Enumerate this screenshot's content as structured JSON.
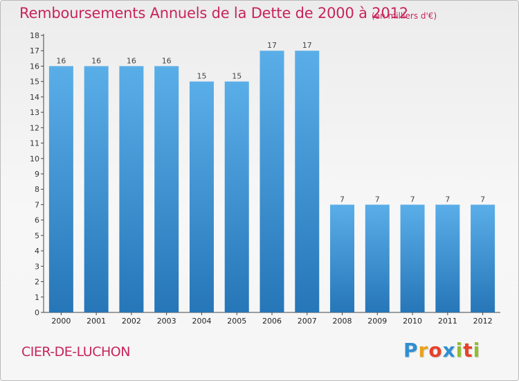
{
  "header": {
    "title": "Remboursements Annuels de la Dette de 2000 à 2012",
    "unit": "(en milliers d'€)"
  },
  "footer": {
    "commune": "CIER-DE-LUCHON",
    "logo_letters": [
      "P",
      "r",
      "o",
      "x",
      "i",
      "t",
      "i"
    ],
    "logo_colors": [
      "#2f8fd3",
      "#e8a21c",
      "#e7412c",
      "#2f8fd3",
      "#8fbf2a",
      "#e7412c",
      "#8fbf2a"
    ]
  },
  "colors": {
    "accent": "#c8235b",
    "bar_top": "#5aaee8",
    "bar_bottom": "#2676b8"
  },
  "chart_data": {
    "type": "bar",
    "title": "Remboursements Annuels de la Dette de 2000 à 2012",
    "xlabel": "",
    "ylabel": "en milliers d'€",
    "categories": [
      "2000",
      "2001",
      "2002",
      "2003",
      "2004",
      "2005",
      "2006",
      "2007",
      "2008",
      "2009",
      "2010",
      "2011",
      "2012"
    ],
    "values": [
      16,
      16,
      16,
      16,
      15,
      15,
      17,
      17,
      7,
      7,
      7,
      7,
      7
    ],
    "ylim": [
      0,
      18
    ],
    "yticks": [
      "0",
      "1",
      "2",
      "3",
      "4",
      "5",
      "6",
      "7",
      "8",
      "9",
      "10",
      "11",
      "12",
      "13",
      "14",
      "15",
      "16",
      "17",
      "18"
    ],
    "grid": false,
    "legend": "none"
  }
}
